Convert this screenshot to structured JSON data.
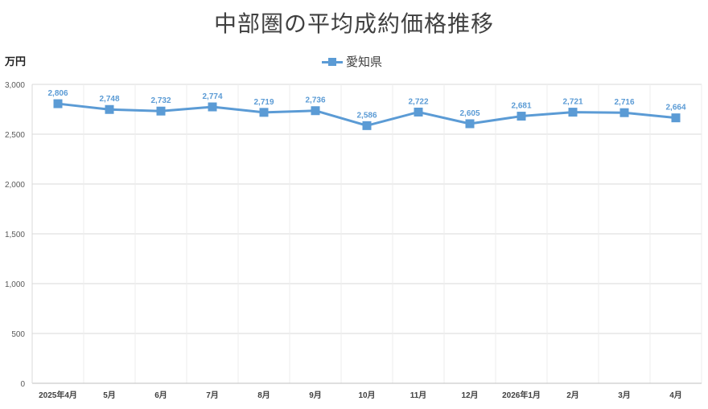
{
  "title": "中部圏の平均成約価格推移",
  "unit_label": "万円",
  "chart_data": {
    "type": "line",
    "categories": [
      "2025年4月",
      "5月",
      "6月",
      "7月",
      "8月",
      "9月",
      "10月",
      "11月",
      "12月",
      "2026年1月",
      "2月",
      "3月",
      "4月"
    ],
    "series": [
      {
        "name": "愛知県",
        "values": [
          2806,
          2748,
          2732,
          2774,
          2719,
          2736,
          2586,
          2722,
          2605,
          2681,
          2721,
          2716,
          2664
        ]
      }
    ],
    "ylim": [
      0,
      3000
    ],
    "yticks": [
      0,
      500,
      1000,
      1500,
      2000,
      2500,
      3000
    ],
    "data_labels": [
      "2,806",
      "2,748",
      "2,732",
      "2,774",
      "2,719",
      "2,736",
      "2,586",
      "2,722",
      "2,605",
      "2,681",
      "2,721",
      "2,716",
      "2,664"
    ],
    "ytick_labels": [
      "0",
      "500",
      "1,000",
      "1,500",
      "2,000",
      "2,500",
      "3,000"
    ],
    "grid": true,
    "legend_position": "top",
    "colors": {
      "series": "#5b9bd5",
      "grid": "#d9d9d9",
      "label": "#5b9bd5"
    }
  }
}
